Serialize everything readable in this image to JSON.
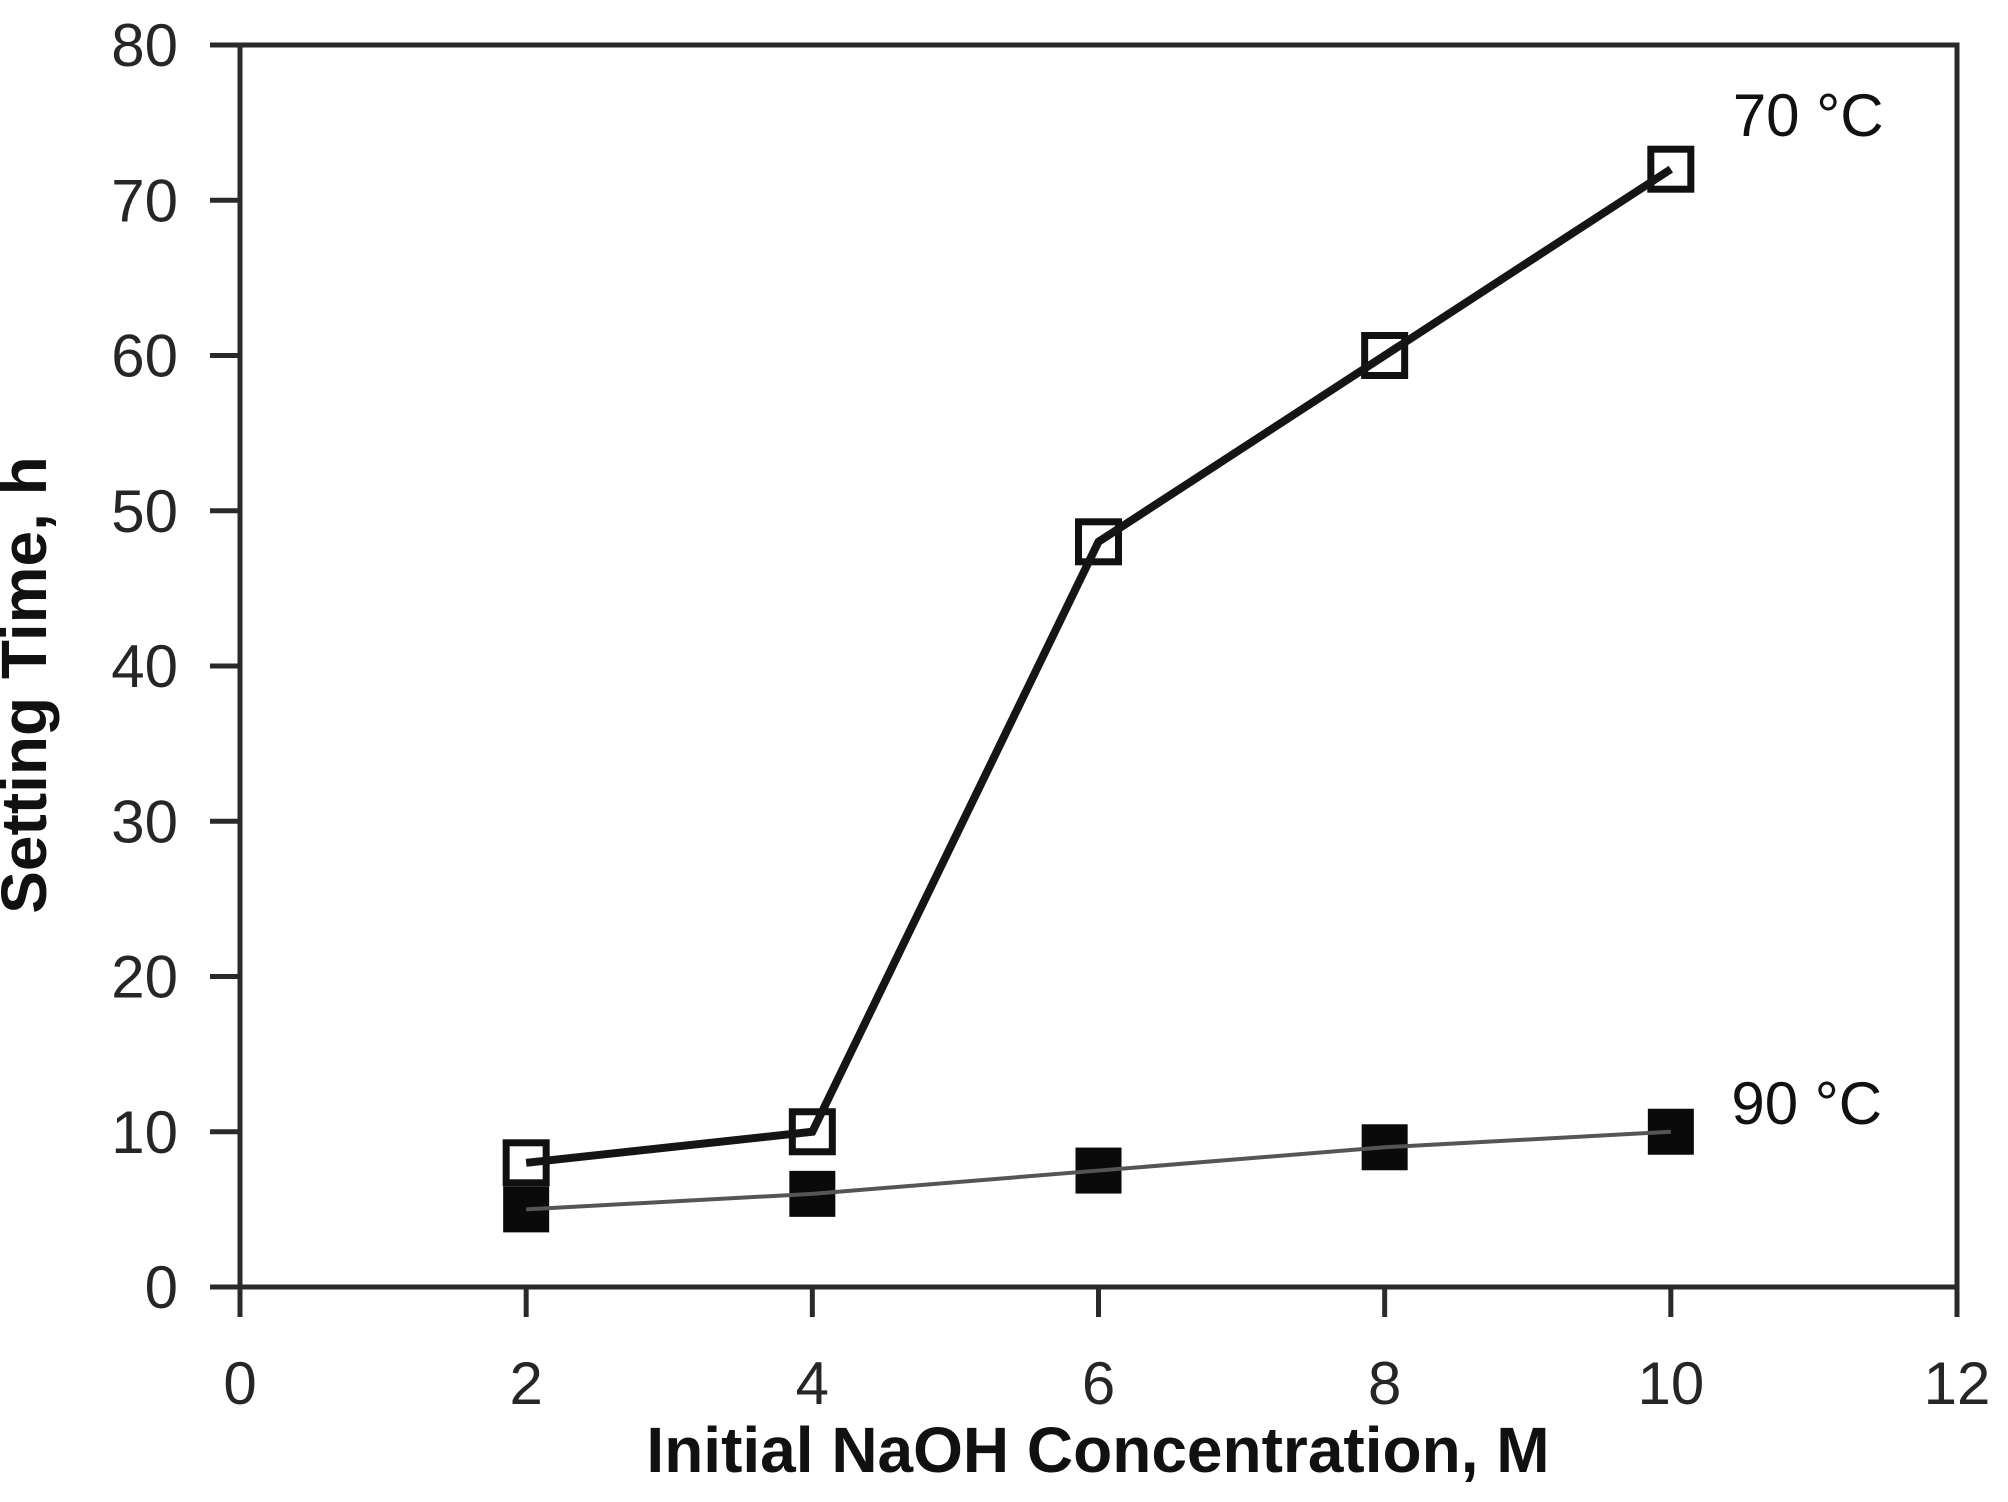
{
  "chart_data": {
    "type": "line",
    "xlabel": "Initial NaOH Concentration, M",
    "ylabel": "Setting Time, h",
    "xlim": [
      0,
      12
    ],
    "ylim": [
      0,
      80
    ],
    "xticks": [
      0,
      2,
      4,
      6,
      8,
      10,
      12
    ],
    "yticks": [
      0,
      10,
      20,
      30,
      40,
      50,
      60,
      70,
      80
    ],
    "grid": false,
    "legend_position": "inline-annotations",
    "axis_color": "#2a2a2a",
    "series": [
      {
        "name": "70 °C",
        "marker": "open-square",
        "marker_stroke": "#111111",
        "marker_fill": "#ffffff",
        "line_color": "#151515",
        "line_width": 8,
        "x": [
          2,
          4,
          6,
          8,
          10
        ],
        "y": [
          8,
          10,
          48,
          60,
          72
        ]
      },
      {
        "name": "90 °C",
        "marker": "filled-square",
        "marker_stroke": "#0a0a0a",
        "marker_fill": "#0a0a0a",
        "line_color": "#555555",
        "line_width": 4,
        "x": [
          2,
          4,
          6,
          8,
          10
        ],
        "y": [
          5,
          6,
          7.5,
          9,
          10
        ]
      }
    ],
    "annotations": [
      {
        "text": "70 °C",
        "x": 10.96,
        "y": 75.5
      },
      {
        "text": "90 °C",
        "x": 10.95,
        "y": 11.85
      }
    ]
  }
}
